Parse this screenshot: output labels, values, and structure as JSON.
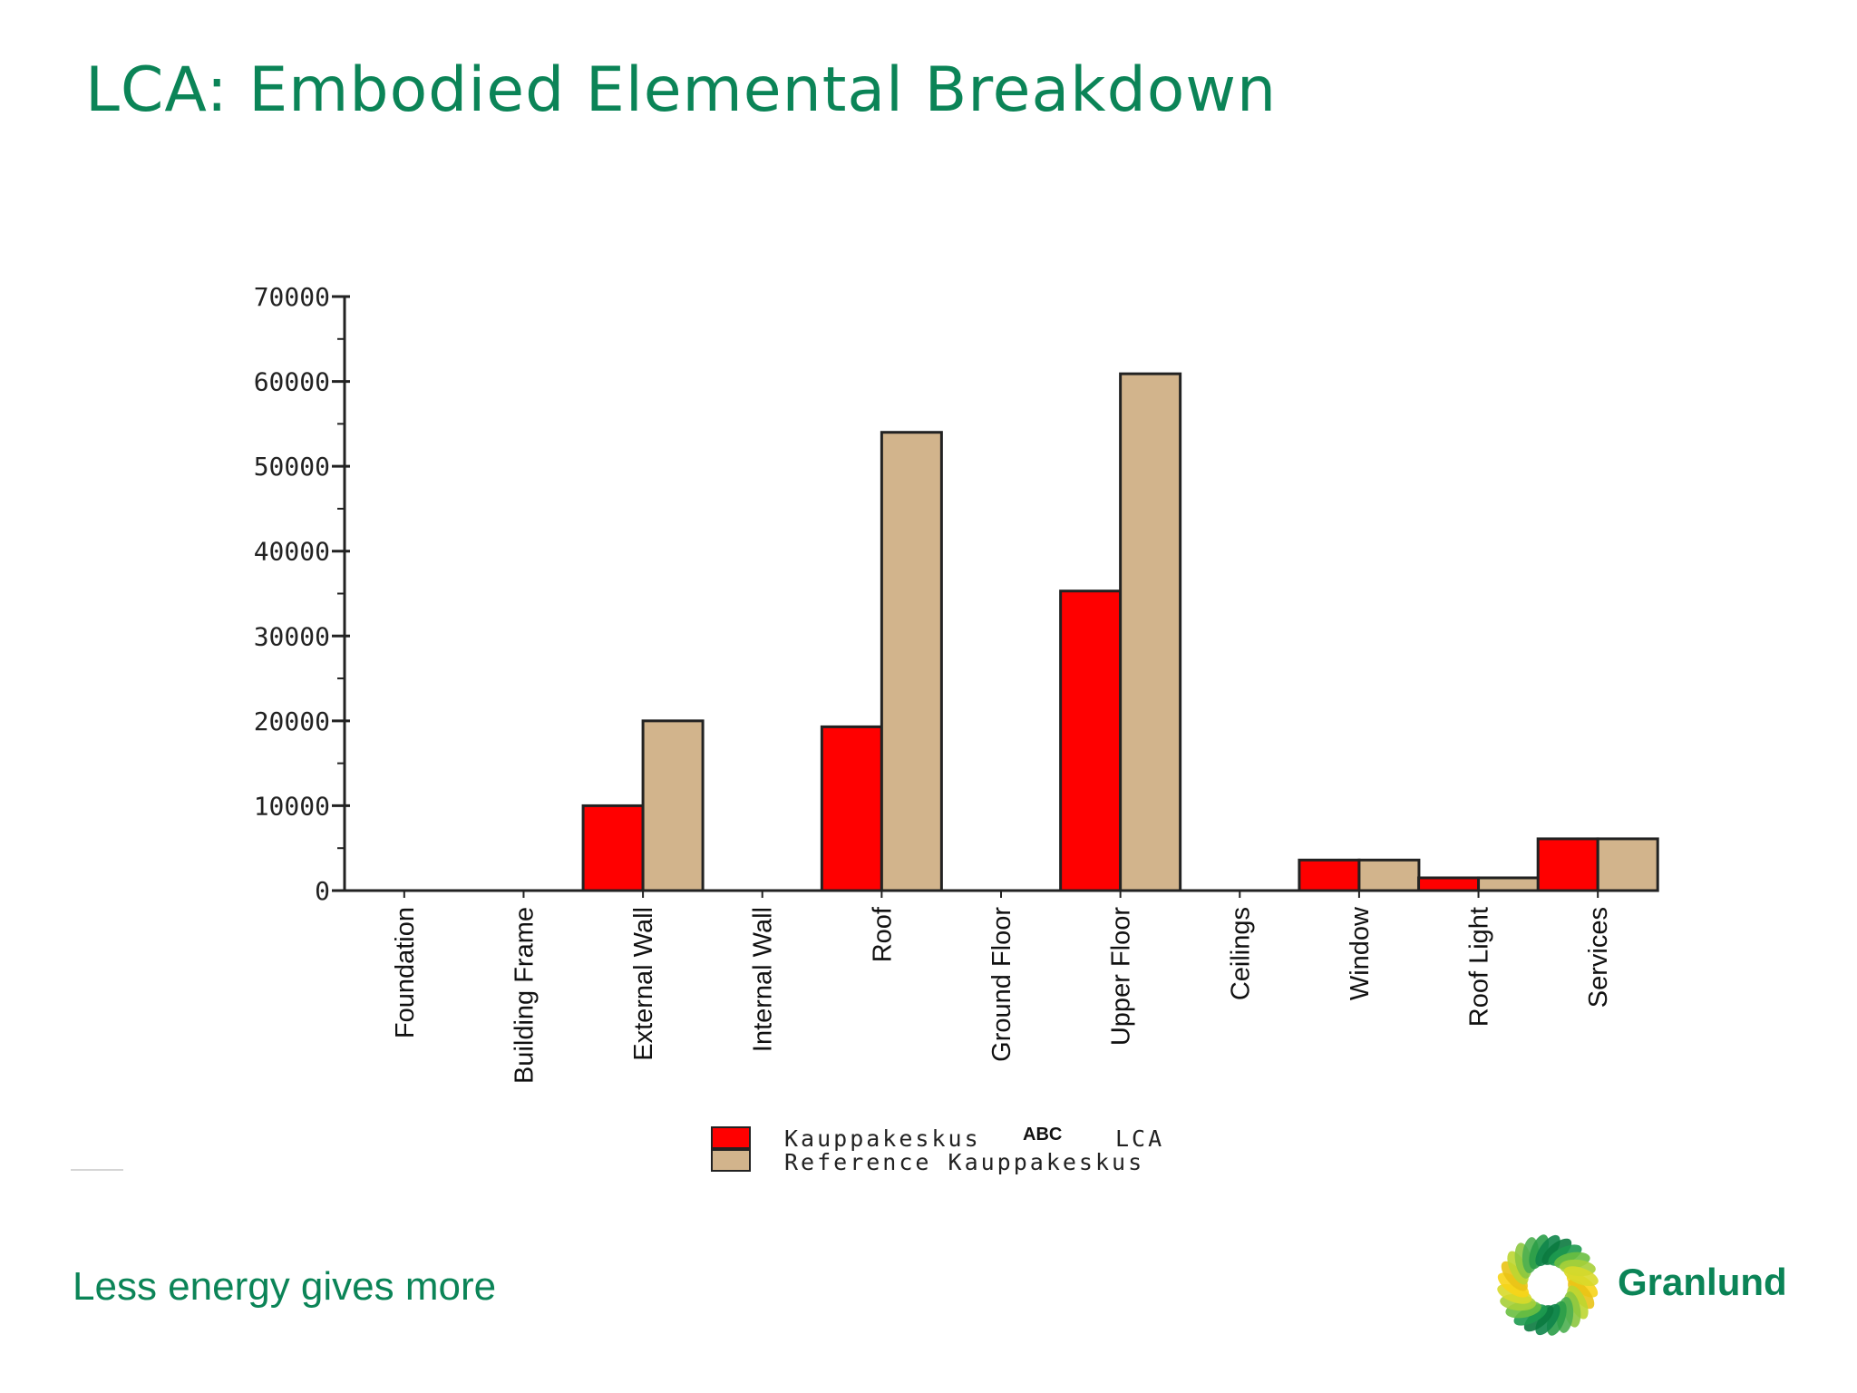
{
  "slide": {
    "title": "LCA: Embodied Elemental Breakdown",
    "tagline": "Less energy gives more",
    "brand_name": "Granlund"
  },
  "colors": {
    "title": "#0b8457",
    "series_1": "#ff0000",
    "series_2": "#d2b48c",
    "axis": "#222222"
  },
  "chart_data": {
    "type": "bar",
    "categories": [
      "Foundation",
      "Building Frame",
      "External Wall",
      "Internal Wall",
      "Roof",
      "Ground Floor",
      "Upper Floor",
      "Ceilings",
      "Window",
      "Roof Light",
      "Services"
    ],
    "series": [
      {
        "name": "Kauppakeskus LCA",
        "color": "#ff0000",
        "values": [
          0,
          0,
          10000,
          0,
          19300,
          0,
          35300,
          0,
          3600,
          1500,
          6100
        ]
      },
      {
        "name": "Reference Kauppakeskus",
        "color": "#d2b48c",
        "values": [
          0,
          0,
          20000,
          0,
          54000,
          0,
          60900,
          0,
          3600,
          1500,
          6100
        ]
      }
    ],
    "yticks": [
      0,
      10000,
      20000,
      30000,
      40000,
      50000,
      60000,
      70000
    ],
    "ylim": [
      0,
      70000
    ],
    "legend_position": "bottom",
    "legend_labels": {
      "series_1_prefix": "Kauppakeskus",
      "series_1_overlay": "ABC",
      "series_1_suffix": "LCA",
      "series_2": "Reference Kauppakeskus"
    }
  }
}
